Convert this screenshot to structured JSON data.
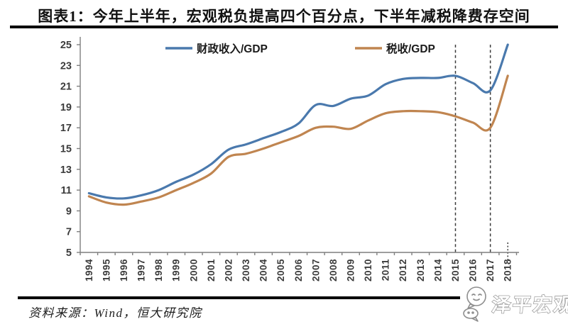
{
  "footer": {
    "source": "资料来源：Wind，恒大研究院",
    "logo_text": "泽平宏观"
  },
  "chart_data": {
    "type": "line",
    "title": "图表1：今年上半年，宏观税负提高四个百分点，下半年减税降费存空间",
    "xlabel": "",
    "ylabel": "",
    "ylim": [
      5,
      25
    ],
    "yticks": [
      5,
      7,
      9,
      11,
      13,
      15,
      17,
      19,
      21,
      23,
      25
    ],
    "grid": false,
    "legend_position": "top-inside",
    "x": [
      "1994",
      "1995",
      "1996",
      "1997",
      "1998",
      "1999",
      "2000",
      "2001",
      "2002",
      "2003",
      "2004",
      "2005",
      "2006",
      "2007",
      "2008",
      "2009",
      "2010",
      "2011",
      "2012",
      "2013",
      "2014",
      "2015",
      "2016",
      "2017",
      "2018"
    ],
    "series": [
      {
        "name": "财政收入/GDP",
        "color": "#4a79ad",
        "values": [
          10.7,
          10.3,
          10.2,
          10.5,
          11.0,
          11.8,
          12.5,
          13.5,
          14.9,
          15.4,
          16.0,
          16.6,
          17.4,
          19.2,
          19.1,
          19.8,
          20.1,
          21.2,
          21.7,
          21.8,
          21.8,
          22.0,
          21.3,
          20.6,
          25.0
        ]
      },
      {
        "name": "税收/GDP",
        "color": "#c08550",
        "values": [
          10.4,
          9.8,
          9.6,
          9.9,
          10.3,
          11.0,
          11.7,
          12.6,
          14.2,
          14.5,
          15.0,
          15.6,
          16.2,
          17.0,
          17.1,
          16.9,
          17.7,
          18.4,
          18.6,
          18.6,
          18.5,
          18.1,
          17.5,
          17.0,
          22.0
        ]
      }
    ],
    "annotations": {
      "dashed_vlines": [
        "2015",
        "2017"
      ],
      "dotted_vline_partial": "2018"
    }
  }
}
